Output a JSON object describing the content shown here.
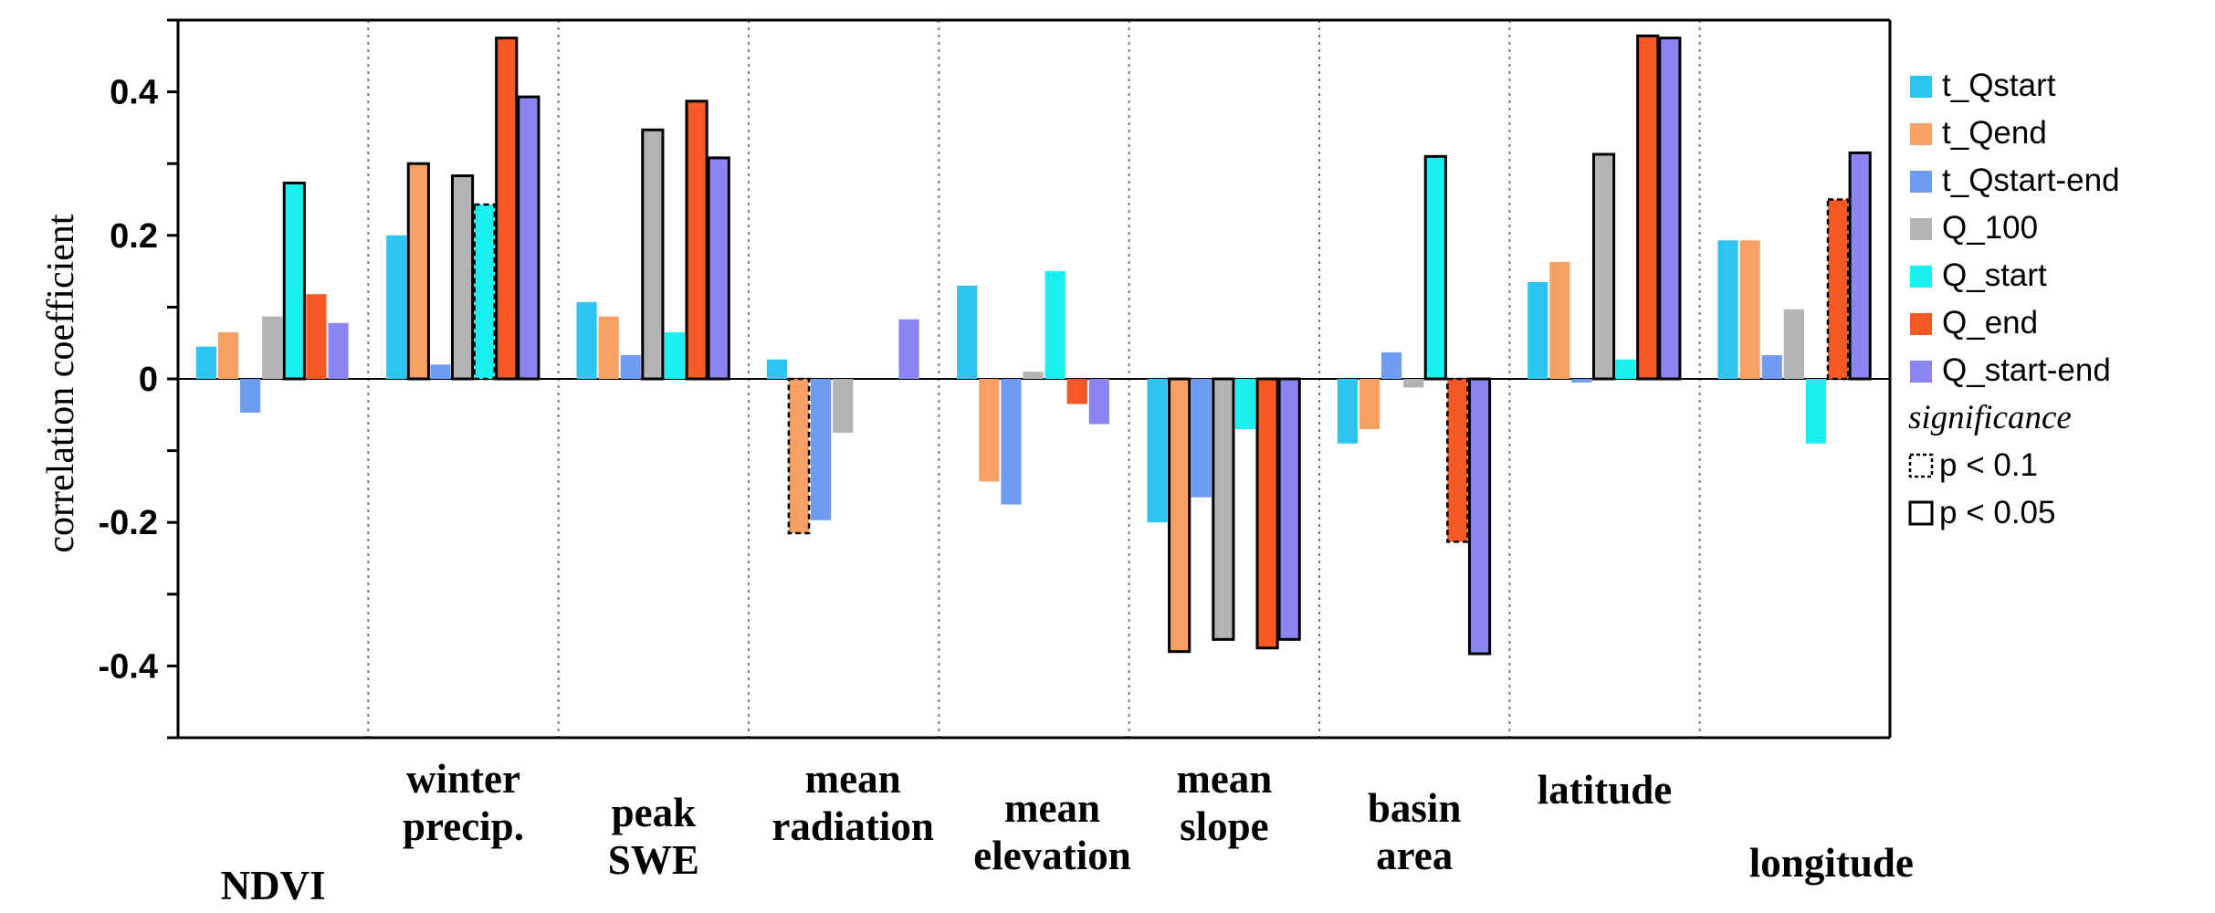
{
  "chart_data": {
    "type": "bar",
    "title": "",
    "xlabel": "",
    "ylabel": "correlation coefficient",
    "ylim": [
      -0.5,
      0.5
    ],
    "yticks": [
      -0.4,
      -0.2,
      0,
      0.2,
      0.4
    ],
    "ytick_labels": [
      "-0.4",
      "-0.2",
      "0",
      "0.2",
      "0.4"
    ],
    "categories": [
      {
        "lines": [
          "NDVI"
        ]
      },
      {
        "lines": [
          "winter",
          "precip."
        ]
      },
      {
        "lines": [
          "peak",
          "SWE"
        ]
      },
      {
        "lines": [
          "mean",
          "radiation"
        ]
      },
      {
        "lines": [
          "mean",
          "elevation"
        ]
      },
      {
        "lines": [
          "mean",
          "slope"
        ]
      },
      {
        "lines": [
          "basin",
          "area"
        ]
      },
      {
        "lines": [
          "latitude"
        ]
      },
      {
        "lines": [
          "longitude"
        ]
      }
    ],
    "series": [
      {
        "name": "t_Qstart",
        "color": "#2ec4f0",
        "values": [
          0.045,
          0.2,
          0.107,
          0.027,
          0.13,
          -0.2,
          -0.09,
          0.135,
          0.193
        ],
        "significance": [
          "none",
          "none",
          "none",
          "none",
          "none",
          "none",
          "none",
          "none",
          "none"
        ]
      },
      {
        "name": "t_Qend",
        "color": "#f7a064",
        "values": [
          0.065,
          0.3,
          0.087,
          -0.215,
          -0.143,
          -0.38,
          -0.07,
          0.163,
          0.193
        ],
        "significance": [
          "none",
          "p005",
          "none",
          "p01",
          "none",
          "p005",
          "none",
          "none",
          "none"
        ]
      },
      {
        "name": "t_Qstart-end",
        "color": "#6f9bf2",
        "values": [
          -0.047,
          0.02,
          0.033,
          -0.197,
          -0.175,
          -0.165,
          0.037,
          -0.005,
          0.033
        ],
        "significance": [
          "none",
          "none",
          "none",
          "none",
          "none",
          "none",
          "none",
          "none",
          "none"
        ]
      },
      {
        "name": "Q_100",
        "color": "#b3b3b3",
        "values": [
          0.087,
          0.283,
          0.347,
          -0.075,
          0.01,
          -0.363,
          -0.012,
          0.313,
          0.097
        ],
        "significance": [
          "none",
          "p005",
          "p005",
          "none",
          "none",
          "p005",
          "none",
          "p005",
          "none"
        ]
      },
      {
        "name": "Q_start",
        "color": "#19f0f0",
        "values": [
          0.273,
          0.243,
          0.065,
          0.0,
          0.15,
          -0.07,
          0.31,
          0.027,
          -0.09
        ],
        "significance": [
          "p005",
          "p01",
          "none",
          "none",
          "none",
          "none",
          "p005",
          "none",
          "none"
        ]
      },
      {
        "name": "Q_end",
        "color": "#f55a24",
        "values": [
          0.118,
          0.475,
          0.387,
          0.0,
          -0.035,
          -0.375,
          -0.227,
          0.478,
          0.25
        ],
        "significance": [
          "none",
          "p005",
          "p005",
          "none",
          "none",
          "p005",
          "p01",
          "p005",
          "p01"
        ]
      },
      {
        "name": "Q_start-end",
        "color": "#8a85f0",
        "values": [
          0.078,
          0.393,
          0.308,
          0.083,
          -0.063,
          -0.363,
          -0.383,
          0.475,
          0.315
        ],
        "significance": [
          "none",
          "p005",
          "p005",
          "none",
          "none",
          "p005",
          "p005",
          "p005",
          "p005"
        ]
      }
    ],
    "legend": {
      "position": "right",
      "significance_title": "significance",
      "significance_items": [
        {
          "label": "p < 0.1",
          "style": "dashed"
        },
        {
          "label": "p < 0.05",
          "style": "solid"
        }
      ]
    }
  }
}
